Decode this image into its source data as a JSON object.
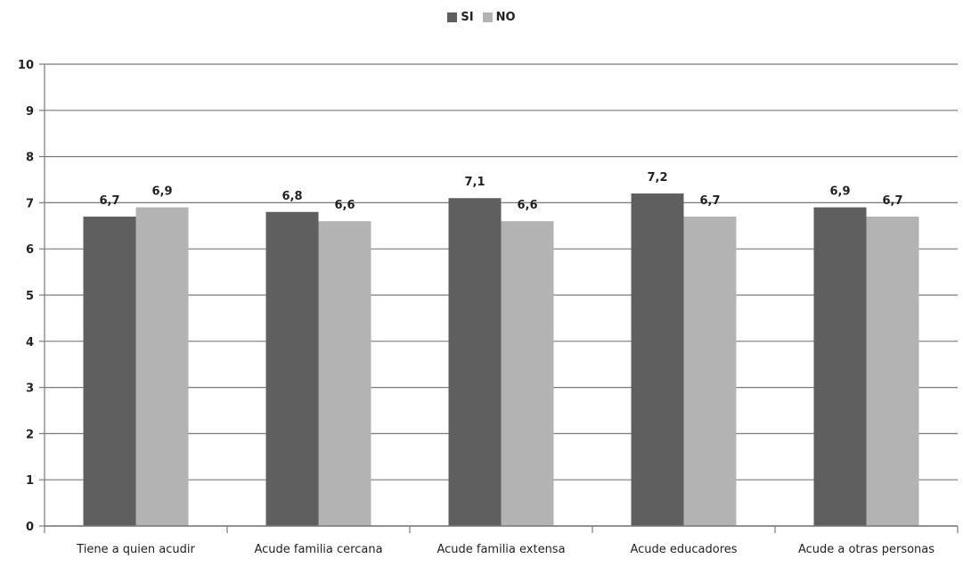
{
  "chart_data": {
    "type": "bar",
    "categories": [
      "Tiene a quien acudir",
      "Acude familia cercana",
      "Acude familia extensa",
      "Acude educadores",
      "Acude a otras personas"
    ],
    "series": [
      {
        "name": "SI",
        "values": [
          6.7,
          6.8,
          7.1,
          7.2,
          6.9
        ],
        "labels": [
          "6,7",
          "6,8",
          "7,1",
          "7,2",
          "6,9"
        ],
        "color": "#5f5f5f"
      },
      {
        "name": "NO",
        "values": [
          6.9,
          6.6,
          6.6,
          6.7,
          6.7
        ],
        "labels": [
          "6,9",
          "6,6",
          "6,6",
          "6,7",
          "6,7"
        ],
        "color": "#b3b3b3"
      }
    ],
    "y_ticks": [
      "0",
      "1",
      "2",
      "3",
      "4",
      "5",
      "6",
      "7",
      "8",
      "9",
      "10"
    ],
    "ylim": [
      0,
      10
    ],
    "grid": true,
    "legend_position": "top-center",
    "title": "",
    "xlabel": "",
    "ylabel": ""
  }
}
